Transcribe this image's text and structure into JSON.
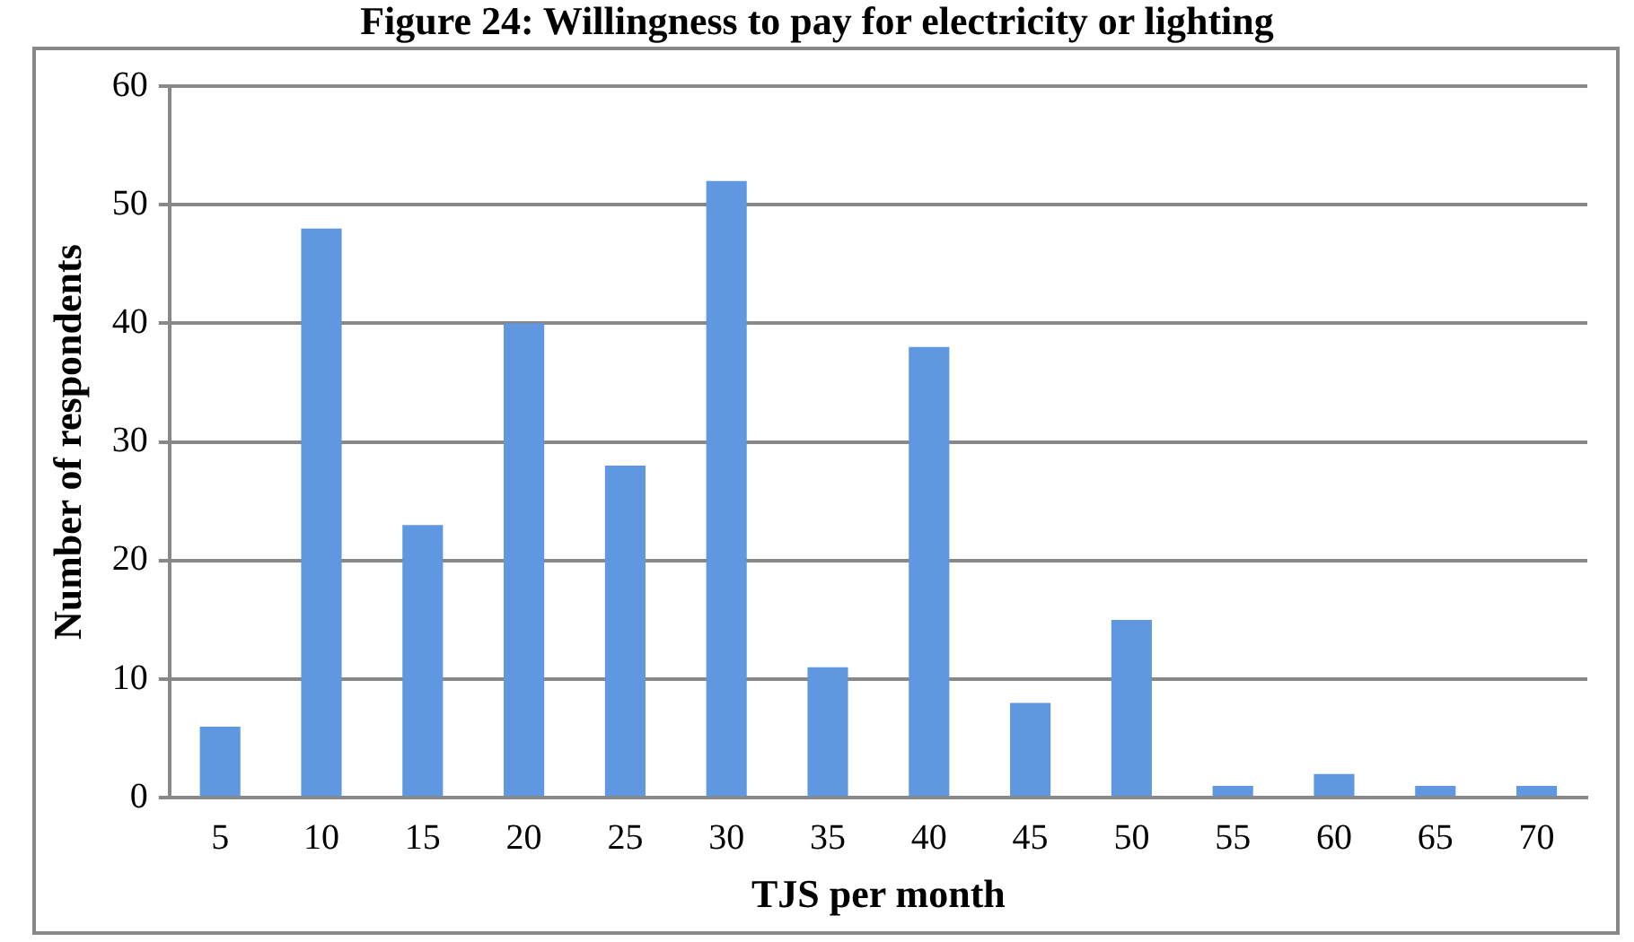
{
  "chart_data": {
    "type": "bar",
    "title": "Figure 24: Willingness to pay for electricity or lighting",
    "xlabel": "TJS per month",
    "ylabel": "Number of respondents",
    "categories": [
      "5",
      "10",
      "15",
      "20",
      "25",
      "30",
      "35",
      "40",
      "45",
      "50",
      "55",
      "60",
      "65",
      "70"
    ],
    "values": [
      6,
      48,
      23,
      40,
      28,
      52,
      11,
      38,
      8,
      15,
      1,
      2,
      1,
      1
    ],
    "color": "#5f97e0",
    "ylim": [
      0,
      60
    ],
    "yticks": [
      0,
      10,
      20,
      30,
      40,
      50,
      60
    ],
    "grid": "y",
    "legend": false
  }
}
